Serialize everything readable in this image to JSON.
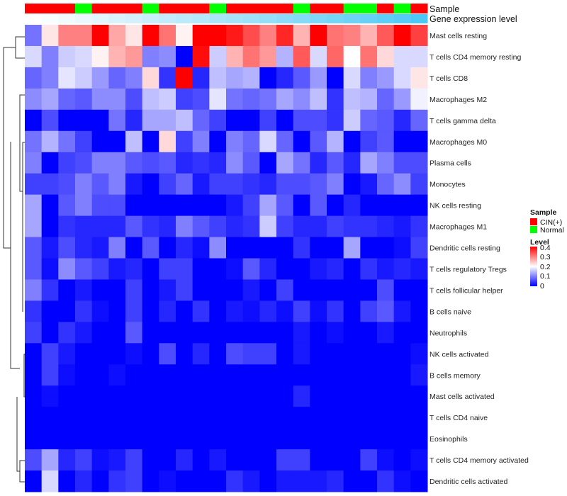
{
  "chart_data": {
    "type": "heatmap",
    "title": "",
    "annotations": {
      "sample_label": "Sample",
      "gene_label": "Gene expression level",
      "sample": [
        "CIN(+)",
        "CIN(+)",
        "CIN(+)",
        "Normal",
        "CIN(+)",
        "CIN(+)",
        "CIN(+)",
        "Normal",
        "CIN(+)",
        "CIN(+)",
        "CIN(+)",
        "Normal",
        "CIN(+)",
        "CIN(+)",
        "CIN(+)",
        "CIN(+)",
        "Normal",
        "CIN(+)",
        "CIN(+)",
        "Normal",
        "Normal",
        "CIN(+)",
        "Normal",
        "CIN(+)"
      ],
      "gene_expression_level": [
        0,
        0.04,
        0.08,
        0.12,
        0.17,
        0.21,
        0.25,
        0.3,
        0.34,
        0.38,
        0.42,
        0.47,
        0.51,
        0.55,
        0.6,
        0.64,
        0.68,
        0.72,
        0.77,
        0.81,
        0.85,
        0.9,
        0.94,
        1.0
      ]
    },
    "rows": [
      "Mast cells resting",
      "T cells CD4 memory resting",
      "T cells CD8",
      "Macrophages M2",
      "T cells gamma delta",
      "Macrophages M0",
      "Plasma cells",
      "Monocytes",
      "NK cells resting",
      "Macrophages M1",
      "Dendritic cells resting",
      "T cells regulatory  Tregs",
      "T cells follicular helper",
      "B cells naive",
      "Neutrophils",
      "NK cells activated",
      "B cells memory",
      "Mast cells activated",
      "T cells CD4 naive",
      "Eosinophils",
      "T cells CD4 memory activated",
      "Dendritic cells activated"
    ],
    "values": [
      [
        0.09,
        0.22,
        0.3,
        0.3,
        0.4,
        0.27,
        0.22,
        0.4,
        0.31,
        0.21,
        0.4,
        0.4,
        0.38,
        0.34,
        0.3,
        0.37,
        0.26,
        0.4,
        0.31,
        0.3,
        0.26,
        0.33,
        0.4,
        0.35
      ],
      [
        0.17,
        0.1,
        0.16,
        0.17,
        0.21,
        0.26,
        0.28,
        0.1,
        0.11,
        0,
        0.39,
        0.16,
        0.26,
        0.31,
        0.28,
        0.14,
        0.33,
        0.17,
        0.32,
        0.2,
        0.31,
        0.23,
        0.17,
        0.17
      ],
      [
        0.08,
        0.1,
        0.18,
        0.16,
        0.12,
        0.08,
        0.1,
        0.23,
        0.04,
        0.4,
        0.03,
        0.15,
        0.13,
        0.14,
        0,
        0.03,
        0.07,
        0.12,
        0,
        0.17,
        0.1,
        0.12,
        0.17,
        0.22
      ],
      [
        0.11,
        0.13,
        0.08,
        0.07,
        0.11,
        0.11,
        0.06,
        0.15,
        0.16,
        0.05,
        0.06,
        0.18,
        0.09,
        0.08,
        0.09,
        0.13,
        0.11,
        0.15,
        0.04,
        0.15,
        0.14,
        0.08,
        0.12,
        0.19
      ],
      [
        0,
        0.06,
        0,
        0,
        0,
        0.09,
        0.03,
        0.13,
        0.13,
        0.15,
        0.08,
        0.05,
        0,
        0,
        0.05,
        0,
        0.06,
        0.06,
        0.04,
        0.16,
        0.08,
        0.07,
        0.03,
        0.08
      ],
      [
        0.09,
        0.14,
        0.09,
        0.05,
        0,
        0,
        0.15,
        0,
        0.23,
        0.05,
        0.1,
        0,
        0.1,
        0.08,
        0.17,
        0.08,
        0,
        0.07,
        0.14,
        0,
        0.05,
        0.07,
        0,
        0
      ],
      [
        0.1,
        0,
        0.05,
        0.06,
        0.1,
        0.1,
        0.07,
        0.06,
        0.07,
        0.03,
        0.04,
        0.03,
        0.11,
        0.07,
        0,
        0.13,
        0.09,
        0.03,
        0.07,
        0.03,
        0.13,
        0.1,
        0.06,
        0.06
      ],
      [
        0.05,
        0.05,
        0.06,
        0.1,
        0.07,
        0.1,
        0.02,
        0,
        0.05,
        0.08,
        0.02,
        0.05,
        0.05,
        0.04,
        0.03,
        0.06,
        0.06,
        0.07,
        0.1,
        0,
        0.02,
        0.08,
        0.11,
        0.05
      ],
      [
        0.13,
        0,
        0.07,
        0.1,
        0.06,
        0.06,
        0,
        0,
        0,
        0,
        0,
        0,
        0.02,
        0.05,
        0.13,
        0.07,
        0,
        0.07,
        0,
        0.03,
        0,
        0,
        0,
        0
      ],
      [
        0.13,
        0,
        0.04,
        0.03,
        0.03,
        0.03,
        0.07,
        0.04,
        0.03,
        0.1,
        0.07,
        0.05,
        0.03,
        0.04,
        0.16,
        0.05,
        0.03,
        0.03,
        0.05,
        0.04,
        0.04,
        0.03,
        0.02,
        0.04
      ],
      [
        0.07,
        0.02,
        0.06,
        0.03,
        0.02,
        0.1,
        0,
        0.07,
        0,
        0.03,
        0.01,
        0.11,
        0,
        0,
        0,
        0,
        0.04,
        0,
        0,
        0.13,
        0,
        0,
        0.01,
        0.05
      ],
      [
        0.07,
        0.01,
        0.11,
        0.07,
        0.05,
        0.02,
        0.03,
        0,
        0.05,
        0.05,
        0,
        0,
        0.01,
        0.07,
        0.03,
        0,
        0,
        0.02,
        0.03,
        0,
        0.04,
        0.02,
        0.03,
        0.02
      ],
      [
        0.1,
        0.04,
        0,
        0.02,
        0,
        0,
        0.05,
        0,
        0.02,
        0.05,
        0,
        0,
        0,
        0.02,
        0,
        0.05,
        0,
        0,
        0,
        0,
        0,
        0.06,
        0,
        0
      ],
      [
        0.04,
        0,
        0,
        0.04,
        0.01,
        0,
        0.05,
        0,
        0.03,
        0,
        0.04,
        0,
        0.02,
        0.01,
        0.03,
        0.01,
        0.05,
        0.01,
        0.04,
        0,
        0.05,
        0.07,
        0.02,
        0
      ],
      [
        0.05,
        0,
        0.04,
        0.02,
        0,
        0,
        0.07,
        0,
        0,
        0,
        0,
        0,
        0,
        0,
        0,
        0,
        0.02,
        0,
        0.01,
        0,
        0,
        0.02,
        0,
        0
      ],
      [
        0,
        0.05,
        0.02,
        0,
        0,
        0,
        0.01,
        0,
        0.06,
        0,
        0.03,
        0,
        0.06,
        0.05,
        0.05,
        0,
        0.02,
        0,
        0,
        0,
        0,
        0,
        0,
        0.01
      ],
      [
        0,
        0.05,
        0.01,
        0,
        0,
        0.01,
        0,
        0,
        0,
        0,
        0,
        0,
        0,
        0,
        0,
        0,
        0,
        0,
        0,
        0,
        0,
        0,
        0,
        0.02
      ],
      [
        0,
        0.01,
        0,
        0,
        0,
        0,
        0,
        0,
        0,
        0,
        0,
        0,
        0,
        0,
        0,
        0,
        0.03,
        0,
        0,
        0,
        0,
        0,
        0,
        0
      ],
      [
        0,
        0,
        0,
        0,
        0,
        0,
        0,
        0,
        0,
        0,
        0,
        0,
        0,
        0,
        0,
        0,
        0,
        0,
        0,
        0,
        0,
        0,
        0,
        0
      ],
      [
        0,
        0,
        0,
        0,
        0,
        0,
        0,
        0,
        0,
        0,
        0,
        0,
        0,
        0,
        0,
        0,
        0,
        0,
        0,
        0,
        0,
        0,
        0,
        0
      ],
      [
        0.06,
        0.13,
        0.03,
        0.05,
        0.01,
        0.02,
        0.05,
        0,
        0,
        0.03,
        0,
        0.02,
        0,
        0,
        0,
        0.05,
        0.05,
        0,
        0,
        0,
        0.05,
        0.01,
        0,
        0.01
      ],
      [
        0,
        0.17,
        0,
        0.03,
        0,
        0.04,
        0.05,
        0,
        0.01,
        0,
        0,
        0,
        0.04,
        0.02,
        0,
        0.02,
        0.02,
        0.02,
        0.03,
        0,
        0,
        0.04,
        0.01,
        0
      ]
    ],
    "color_range": [
      0,
      0.4
    ],
    "colors": {
      "low": "#0000FF",
      "mid": "#FFFFFF",
      "high": "#FF0000",
      "cin": "#FF0000",
      "normal": "#00FF00",
      "gene_low": "#FFFFFF",
      "gene_high": "#4CC8F5"
    },
    "legend": {
      "sample_title": "Sample",
      "sample_items": [
        "CIN(+)",
        "Normal"
      ],
      "level_title": "Level",
      "level_ticks": [
        "0.4",
        "0.3",
        "0.2",
        "0.1",
        "0"
      ],
      "placement": "right"
    }
  }
}
